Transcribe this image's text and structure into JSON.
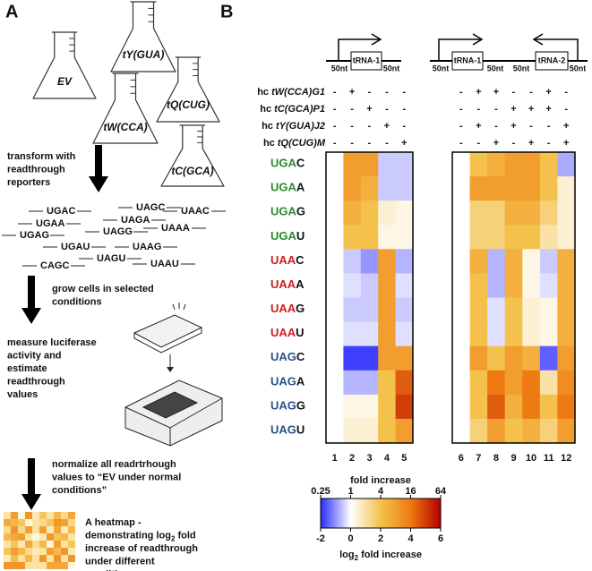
{
  "panel_labels": [
    "A",
    "B"
  ],
  "flasks": [
    "EV",
    "tY(GUA)",
    "tW(CCA)",
    "tQ(CUG)",
    "tC(GCA)"
  ],
  "steps": [
    {
      "lines": [
        "transform with",
        "readthrough",
        "reporters"
      ]
    },
    {
      "lines": [
        "grow cells in selected",
        "conditions"
      ]
    },
    {
      "lines": [
        "measure luciferase",
        "activity and",
        "estimate",
        "readthrough",
        "values"
      ]
    },
    {
      "lines": [
        "normalize all readrtrhough",
        "values to “EV under normal",
        "conditions”"
      ]
    }
  ],
  "reporters": [
    "UGAC",
    "UAGC",
    "UAAC",
    "UGAA",
    "UAGA",
    "UAAA",
    "UGAG",
    "UAGG",
    "UGAU",
    "UAAG",
    "CAGC",
    "UAGU",
    "UAAU"
  ],
  "caption": {
    "line1": "A heatmap -",
    "line2": [
      "demonstrating log",
      "2",
      " fold"
    ],
    "rest": [
      "increase of readthrough",
      "under different",
      "conditions"
    ]
  },
  "constructs": [
    {
      "labels": [
        "50nt",
        "tRNA-1",
        "50nt"
      ]
    },
    {
      "labels": [
        "50nt",
        "tRNA-1",
        "50nt",
        "50nt",
        "tRNA-2",
        "50nt"
      ]
    }
  ],
  "conditions": [
    {
      "prefix": "hc",
      "name": "tW(CCA)G1"
    },
    {
      "prefix": "hc",
      "name": "tC(GCA)P1"
    },
    {
      "prefix": "hc",
      "name": "tY(GUA)J2"
    },
    {
      "prefix": "hc",
      "name": "tQ(CUG)M"
    }
  ],
  "codons": [
    {
      "stop": "UGA",
      "base": "C",
      "color": "#2a8a2a"
    },
    {
      "stop": "UGA",
      "base": "A",
      "color": "#2a8a2a"
    },
    {
      "stop": "UGA",
      "base": "G",
      "color": "#2a8a2a"
    },
    {
      "stop": "UGA",
      "base": "U",
      "color": "#2a8a2a"
    },
    {
      "stop": "UAA",
      "base": "C",
      "color": "#d01c1c"
    },
    {
      "stop": "UAA",
      "base": "A",
      "color": "#d01c1c"
    },
    {
      "stop": "UAA",
      "base": "G",
      "color": "#d01c1c"
    },
    {
      "stop": "UAA",
      "base": "U",
      "color": "#d01c1c"
    },
    {
      "stop": "UAG",
      "base": "C",
      "color": "#2b4f8a"
    },
    {
      "stop": "UAG",
      "base": "A",
      "color": "#2b4f8a"
    },
    {
      "stop": "UAG",
      "base": "G",
      "color": "#2b4f8a"
    },
    {
      "stop": "UAG",
      "base": "U",
      "color": "#2b4f8a"
    }
  ],
  "chart_data": [
    {
      "type": "heatmap",
      "columns": [
        "1",
        "2",
        "3",
        "4",
        "5"
      ],
      "signs": [
        [
          "-",
          "+",
          "-",
          "-",
          "-"
        ],
        [
          "-",
          "-",
          "+",
          "-",
          "-"
        ],
        [
          "-",
          "-",
          "-",
          "+",
          "-"
        ],
        [
          "-",
          "-",
          "-",
          "-",
          "+"
        ]
      ],
      "values": [
        [
          0,
          3,
          3,
          -0.5,
          -0.5
        ],
        [
          0,
          3,
          2.5,
          -0.5,
          -0.5
        ],
        [
          0,
          2.5,
          2,
          0.5,
          0.3
        ],
        [
          0,
          2,
          2,
          0.3,
          0.3
        ],
        [
          0,
          -0.5,
          -1,
          3,
          -0.7
        ],
        [
          0,
          -0.3,
          -0.5,
          3,
          -0.3
        ],
        [
          0,
          -0.5,
          -0.5,
          3,
          -0.5
        ],
        [
          0,
          -0.3,
          -0.3,
          3,
          -0.3
        ],
        [
          0,
          -1.8,
          -1.8,
          3,
          3
        ],
        [
          0,
          -0.7,
          -0.7,
          2,
          4.5
        ],
        [
          0,
          0.3,
          0.3,
          2,
          5
        ],
        [
          0,
          0.5,
          0.5,
          2,
          3
        ]
      ]
    },
    {
      "type": "heatmap",
      "columns": [
        "6",
        "7",
        "8",
        "9",
        "10",
        "11",
        "12"
      ],
      "signs": [
        [
          "-",
          "+",
          "+",
          "-",
          "-",
          "+",
          "-"
        ],
        [
          "-",
          "-",
          "-",
          "+",
          "+",
          "+",
          "-"
        ],
        [
          "-",
          "+",
          "-",
          "+",
          "-",
          "-",
          "+"
        ],
        [
          "-",
          "-",
          "+",
          "-",
          "+",
          "-",
          "+"
        ]
      ],
      "values": [
        [
          0,
          2,
          2.5,
          3,
          3,
          2,
          -0.8
        ],
        [
          0,
          3,
          3,
          3,
          3,
          2,
          0.5
        ],
        [
          0,
          1.5,
          1.5,
          2.5,
          2.5,
          1.5,
          0.5
        ],
        [
          0,
          1.5,
          1.5,
          2,
          2,
          1,
          0.5
        ],
        [
          0,
          2.5,
          -0.7,
          2.5,
          0.3,
          -0.5,
          2.5
        ],
        [
          0,
          2,
          -0.7,
          2.5,
          0.3,
          -0.3,
          2.5
        ],
        [
          0,
          2,
          -0.3,
          2,
          0.5,
          0.3,
          2.5
        ],
        [
          0,
          2,
          -0.3,
          2,
          0.5,
          0.3,
          2.5
        ],
        [
          0,
          3,
          2,
          3,
          2.5,
          -1.5,
          3
        ],
        [
          0,
          2,
          4,
          3,
          4,
          1,
          3.5
        ],
        [
          0,
          2,
          4.5,
          2.5,
          4,
          2,
          4
        ],
        [
          0,
          1.5,
          3,
          2,
          2.5,
          1.5,
          3
        ]
      ]
    }
  ],
  "colorbar": {
    "title": "fold increase",
    "fold_ticks": [
      0.25,
      1,
      4,
      16,
      64
    ],
    "ticks": [
      -2,
      0,
      2,
      4,
      6
    ],
    "lim": [
      -2,
      6
    ],
    "label": [
      "log",
      "2",
      " fold increase"
    ],
    "colorscale": [
      [
        -2,
        "#2a2aff"
      ],
      [
        0,
        "#ffffff"
      ],
      [
        2,
        "#f4c24c"
      ],
      [
        4,
        "#ee7a12"
      ],
      [
        6,
        "#b40000"
      ]
    ]
  }
}
